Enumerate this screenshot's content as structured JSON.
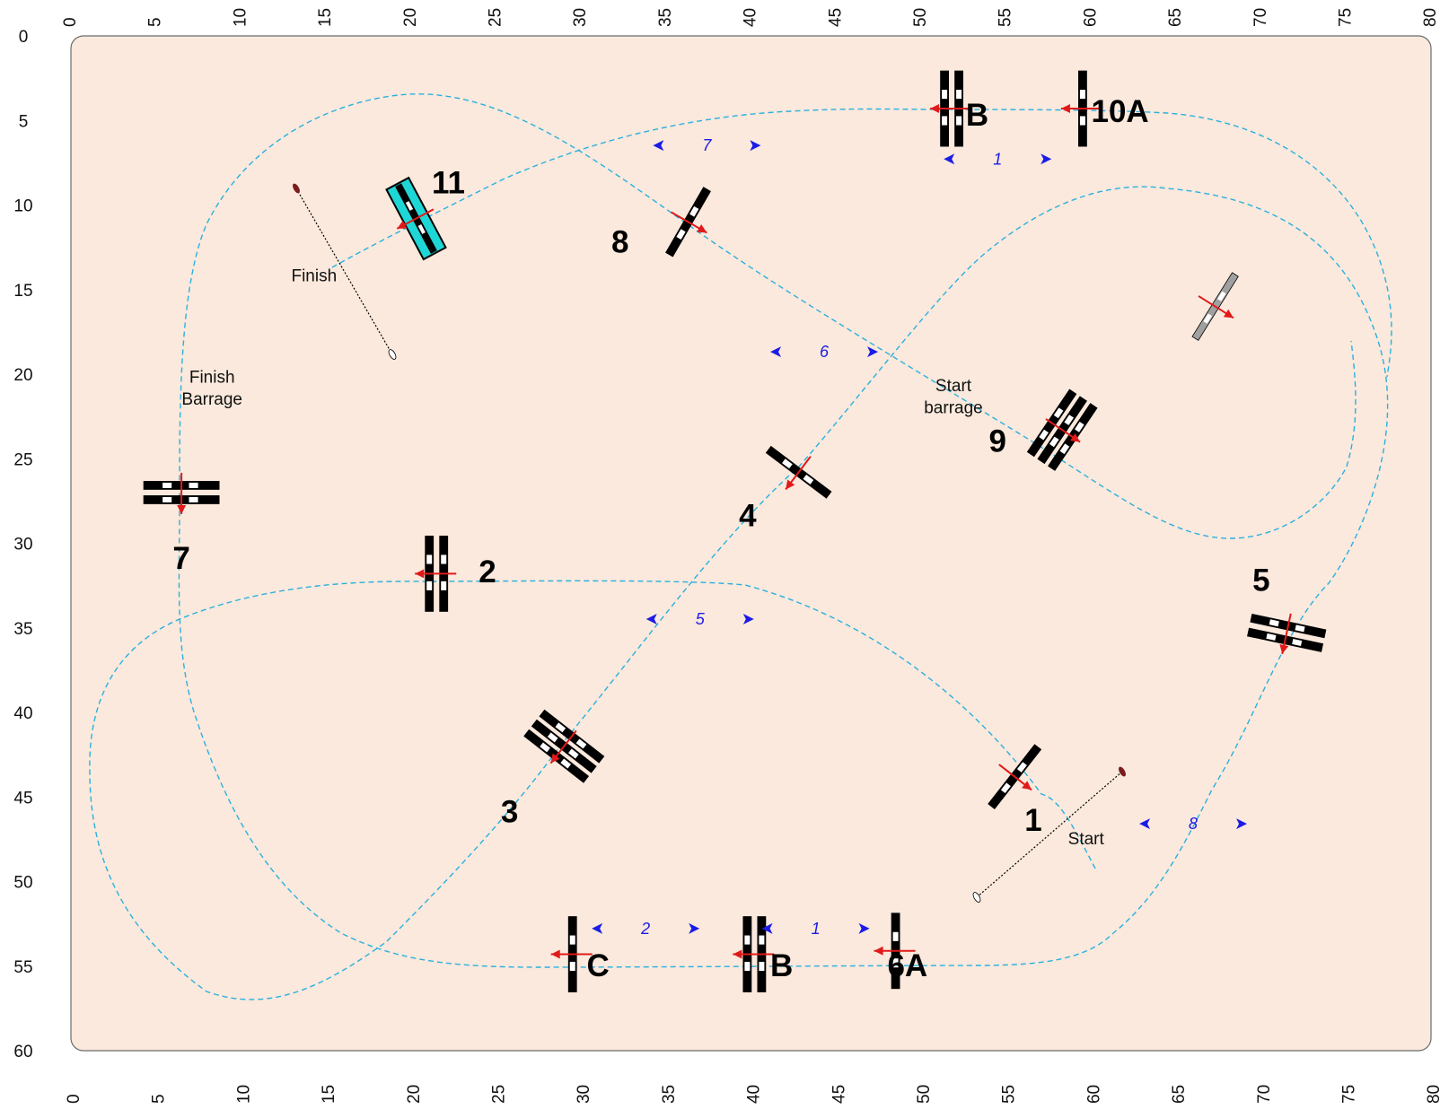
{
  "axes": {
    "top_ticks": [
      "0",
      "5",
      "10",
      "15",
      "20",
      "25",
      "30",
      "35",
      "40",
      "45",
      "50",
      "55",
      "60",
      "65",
      "70",
      "75",
      "80"
    ],
    "bottom_ticks": [
      "0",
      "5",
      "10",
      "15",
      "20",
      "25",
      "30",
      "35",
      "40",
      "45",
      "50",
      "55",
      "60",
      "65",
      "70",
      "75",
      "80"
    ],
    "left_ticks": [
      "0",
      "5",
      "10",
      "15",
      "20",
      "25",
      "30",
      "35",
      "40",
      "45",
      "50",
      "55",
      "60"
    ]
  },
  "jumps": [
    {
      "label": "1",
      "type": "vertical",
      "x": 55.5,
      "y": 43.8,
      "angle": -52,
      "lab_x": 56.6,
      "lab_y": 47.0
    },
    {
      "label": "2",
      "type": "oxer",
      "x": 21.5,
      "y": 31.8,
      "angle": 90,
      "lab_x": 24.5,
      "lab_y": 32.3
    },
    {
      "label": "3",
      "type": "triple",
      "x": 29.0,
      "y": 42.0,
      "angle": 38,
      "lab_x": 25.8,
      "lab_y": 46.5
    },
    {
      "label": "4",
      "type": "vertical",
      "x": 42.8,
      "y": 25.8,
      "angle": 37,
      "lab_x": 39.8,
      "lab_y": 29.0
    },
    {
      "label": "5",
      "type": "oxer",
      "x": 71.5,
      "y": 35.3,
      "angle": 12,
      "lab_x": 70.0,
      "lab_y": 32.8
    },
    {
      "label": "6A",
      "type": "vertical",
      "x": 48.5,
      "y": 54.1,
      "angle": 90,
      "lab_x": 49.2,
      "lab_y": 55.6
    },
    {
      "label": "B",
      "type": "oxer",
      "x": 40.2,
      "y": 54.3,
      "angle": 90,
      "lab_x": 41.8,
      "lab_y": 55.6
    },
    {
      "label": "C",
      "type": "vertical",
      "x": 29.5,
      "y": 54.3,
      "angle": 90,
      "lab_x": 31.0,
      "lab_y": 55.6
    },
    {
      "label": "7",
      "type": "oxer",
      "x": 6.5,
      "y": 27.0,
      "angle": 0,
      "lab_x": 6.5,
      "lab_y": 31.5
    },
    {
      "label": "8",
      "type": "vertical",
      "x": 36.3,
      "y": 11.0,
      "angle": -60,
      "lab_x": 32.3,
      "lab_y": 12.8
    },
    {
      "label": "9",
      "type": "triple",
      "x": 58.3,
      "y": 23.3,
      "angle": -56,
      "lab_x": 54.5,
      "lab_y": 24.6
    },
    {
      "label": "10A",
      "type": "vertical",
      "x": 59.5,
      "y": 4.3,
      "angle": 90,
      "lab_x": 61.7,
      "lab_y": 5.1
    },
    {
      "label": "B",
      "type": "oxer",
      "x": 51.8,
      "y": 4.3,
      "angle": 90,
      "lab_x": 53.3,
      "lab_y": 5.3
    },
    {
      "label": "11",
      "type": "water",
      "x": 20.3,
      "y": 10.8,
      "angle": 62,
      "lab_x": 22.2,
      "lab_y": 9.3
    },
    {
      "label": "",
      "type": "gray",
      "x": 67.3,
      "y": 16.0,
      "angle": -58,
      "lab_x": 0,
      "lab_y": 0
    }
  ],
  "texts": [
    {
      "label": "Finish",
      "x": 14.3,
      "y": 14.5
    },
    {
      "label": "Finish",
      "x": 8.3,
      "y": 20.5
    },
    {
      "label": "Barrage",
      "x": 8.3,
      "y": 21.8
    },
    {
      "label": "Start",
      "x": 51.9,
      "y": 21.0
    },
    {
      "label": "barrage",
      "x": 51.9,
      "y": 22.3
    },
    {
      "label": "Start",
      "x": 59.7,
      "y": 47.8
    }
  ],
  "distances": [
    {
      "label": "1",
      "x": 54.5,
      "y": 7.6
    },
    {
      "label": "7",
      "x": 37.4,
      "y": 6.8
    },
    {
      "label": "6",
      "x": 44.3,
      "y": 19.0
    },
    {
      "label": "5",
      "x": 37.0,
      "y": 34.8
    },
    {
      "label": "2",
      "x": 33.8,
      "y": 53.1
    },
    {
      "label": "1",
      "x": 43.8,
      "y": 53.1
    },
    {
      "label": "8",
      "x": 66.0,
      "y": 46.9
    }
  ],
  "colors": {
    "arena": "#fae9dc",
    "route": "#2bb0e0",
    "arrow_red": "#e01a1a",
    "distance_blue": "#1b1be8",
    "water": "#1fd6d6"
  }
}
